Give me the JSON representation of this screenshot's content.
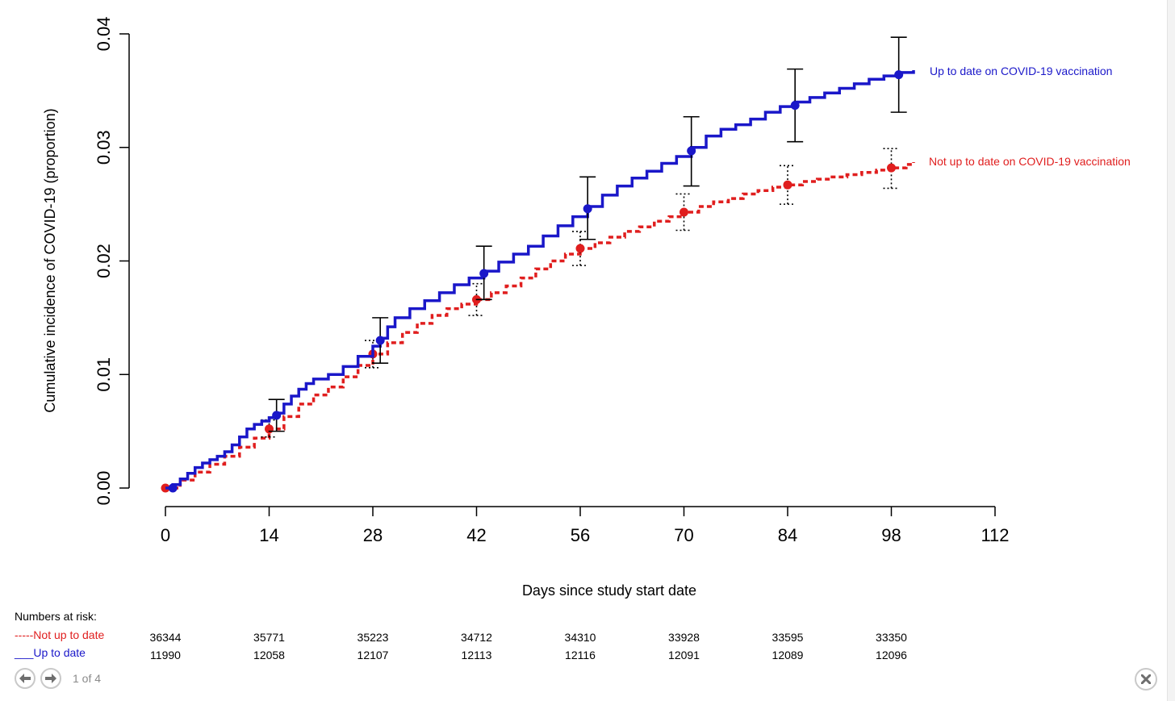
{
  "chart_data": {
    "type": "line",
    "title": "",
    "xlabel": "Days since study start date",
    "ylabel": "Cumulative incidence of COVID-19 (proportion)",
    "xlim": [
      0,
      112
    ],
    "ylim": [
      0,
      0.04
    ],
    "x_ticks": [
      "0",
      "14",
      "28",
      "42",
      "56",
      "70",
      "84",
      "98",
      "112"
    ],
    "y_ticks": [
      "0.00",
      "0.01",
      "0.02",
      "0.03",
      "0.04"
    ],
    "grid": false,
    "series": [
      {
        "name": "Up to date on COVID-19 vaccination",
        "color": "#1a17c9",
        "line_style": "solid",
        "x": [
          1,
          2,
          3,
          4,
          5,
          6,
          7,
          8,
          9,
          10,
          11,
          12,
          13,
          14,
          15,
          16,
          17,
          18,
          19,
          20,
          22,
          24,
          26,
          28,
          29,
          30,
          31,
          33,
          35,
          37,
          39,
          41,
          43,
          45,
          47,
          49,
          51,
          53,
          55,
          57,
          59,
          61,
          63,
          65,
          67,
          69,
          71,
          73,
          75,
          77,
          79,
          81,
          83,
          85,
          87,
          89,
          91,
          93,
          95,
          97,
          99,
          101
        ],
        "y": [
          0.0003,
          0.0008,
          0.0013,
          0.0018,
          0.0022,
          0.0025,
          0.0028,
          0.0032,
          0.0038,
          0.0045,
          0.0052,
          0.0056,
          0.0059,
          0.0062,
          0.0066,
          0.0074,
          0.0081,
          0.0087,
          0.0092,
          0.0096,
          0.01,
          0.0107,
          0.0116,
          0.0125,
          0.0132,
          0.0142,
          0.015,
          0.0158,
          0.0165,
          0.0172,
          0.0179,
          0.0185,
          0.0191,
          0.0199,
          0.0206,
          0.0213,
          0.0222,
          0.0231,
          0.0239,
          0.0248,
          0.0258,
          0.0266,
          0.0273,
          0.0279,
          0.0286,
          0.0292,
          0.03,
          0.031,
          0.0316,
          0.032,
          0.0325,
          0.0331,
          0.0336,
          0.034,
          0.0344,
          0.0348,
          0.0352,
          0.0356,
          0.036,
          0.0363,
          0.0366,
          0.0368
        ],
        "markers": {
          "x": [
            1,
            15,
            29,
            43,
            57,
            71,
            85,
            99
          ],
          "y": [
            0.0,
            0.0064,
            0.013,
            0.0189,
            0.0246,
            0.0297,
            0.0337,
            0.0364
          ],
          "lower": [
            0.0,
            0.005,
            0.011,
            0.0166,
            0.0219,
            0.0266,
            0.0305,
            0.0331
          ],
          "upper": [
            0.0,
            0.0078,
            0.015,
            0.0213,
            0.0274,
            0.0327,
            0.0369,
            0.0397
          ]
        }
      },
      {
        "name": "Not up to date on COVID-19 vaccination",
        "color": "#e01e1e",
        "line_style": "dashed",
        "x": [
          0,
          2,
          4,
          6,
          8,
          10,
          12,
          14,
          16,
          18,
          20,
          22,
          24,
          26,
          28,
          30,
          32,
          34,
          36,
          38,
          40,
          42,
          44,
          46,
          48,
          50,
          52,
          54,
          56,
          58,
          60,
          62,
          64,
          66,
          68,
          70,
          72,
          74,
          76,
          78,
          80,
          82,
          84,
          86,
          88,
          90,
          92,
          94,
          96,
          98,
          100,
          101
        ],
        "y": [
          0.0,
          0.0007,
          0.0014,
          0.0021,
          0.0028,
          0.0036,
          0.0044,
          0.0052,
          0.0063,
          0.0074,
          0.0082,
          0.0089,
          0.0098,
          0.0108,
          0.0118,
          0.0128,
          0.0137,
          0.0145,
          0.0152,
          0.0158,
          0.0162,
          0.0166,
          0.0172,
          0.0178,
          0.0185,
          0.0193,
          0.02,
          0.0206,
          0.0211,
          0.0216,
          0.0221,
          0.0226,
          0.023,
          0.0235,
          0.0239,
          0.0243,
          0.0248,
          0.0252,
          0.0255,
          0.0259,
          0.0262,
          0.0265,
          0.0267,
          0.027,
          0.0272,
          0.0274,
          0.0276,
          0.0278,
          0.028,
          0.0282,
          0.0285,
          0.0287
        ],
        "markers": {
          "x": [
            0,
            14,
            28,
            42,
            56,
            70,
            84,
            98
          ],
          "y": [
            0.0,
            0.0052,
            0.0118,
            0.0166,
            0.0211,
            0.0243,
            0.0267,
            0.0282
          ],
          "lower": [
            0.0,
            0.0045,
            0.0106,
            0.0152,
            0.0196,
            0.0227,
            0.025,
            0.0264
          ],
          "upper": [
            0.0,
            0.006,
            0.013,
            0.018,
            0.0226,
            0.0259,
            0.0284,
            0.0299
          ]
        }
      }
    ]
  },
  "risk_table": {
    "title": "Numbers at risk:",
    "rows": [
      {
        "label": "-----Not up to date",
        "color": "#e01e1e",
        "values": [
          "36344",
          "35771",
          "35223",
          "34712",
          "34310",
          "33928",
          "33595",
          "33350"
        ]
      },
      {
        "label": "___Up to date",
        "color": "#1a17c9",
        "values": [
          "11990",
          "12058",
          "12107",
          "12113",
          "12116",
          "12091",
          "12089",
          "12096"
        ]
      }
    ]
  },
  "viewer": {
    "prev_icon": "arrow-left-icon",
    "next_icon": "arrow-right-icon",
    "page_indicator": "1 of 4",
    "close_icon": "close-icon"
  }
}
